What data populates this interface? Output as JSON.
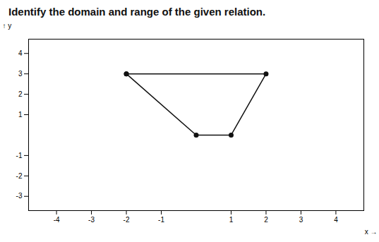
{
  "chart_data": {
    "type": "line",
    "title": "Identify the domain and range of the given relation.",
    "x": [
      -2,
      2,
      1,
      0,
      -2
    ],
    "values": [
      3,
      3,
      0,
      0,
      3
    ],
    "color": "#111111",
    "marker": "circle",
    "xlim": [
      -4.8,
      4.8
    ],
    "ylim": [
      -3.7,
      4.7
    ],
    "xticks": [
      -4,
      -3,
      -2,
      -1,
      1,
      2,
      3,
      4
    ],
    "yticks": [
      -3,
      -2,
      -1,
      1,
      2,
      3,
      4
    ],
    "xlabel": "x",
    "ylabel": "y"
  }
}
